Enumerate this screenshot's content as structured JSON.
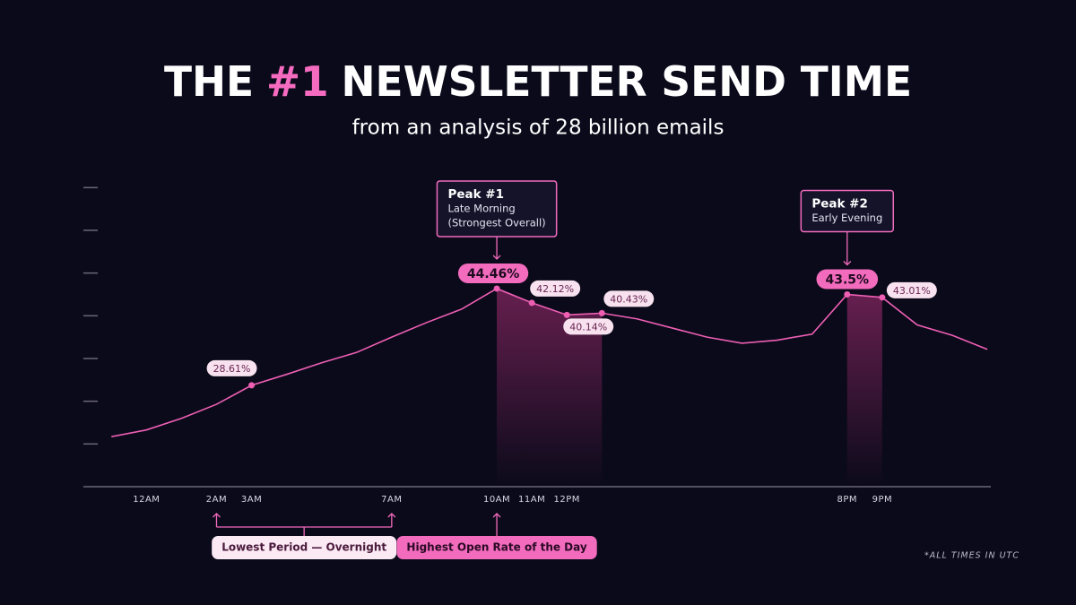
{
  "chart_data": {
    "type": "line",
    "title_parts": [
      "THE",
      "#1",
      "NEWSLETTER SEND TIME"
    ],
    "subtitle": "from an analysis of 28 billion emails",
    "x": [
      -1,
      0,
      1,
      2,
      3,
      4,
      5,
      6,
      7,
      8,
      9,
      10,
      11,
      12,
      13,
      14,
      15,
      16,
      17,
      18,
      19,
      20,
      21,
      22,
      23,
      24
    ],
    "values": [
      20.2,
      21.3,
      23.2,
      25.5,
      28.61,
      30.4,
      32.3,
      34.0,
      36.5,
      38.9,
      41.1,
      44.46,
      42.12,
      40.14,
      40.43,
      39.5,
      38.0,
      36.5,
      35.5,
      36.0,
      37.0,
      43.5,
      43.01,
      38.5,
      36.8,
      34.5
    ],
    "value_labels": [
      null,
      null,
      null,
      null,
      "28.61%",
      null,
      null,
      null,
      null,
      null,
      null,
      "44.46%",
      "42.12%",
      "40.14%",
      "40.43%",
      null,
      null,
      null,
      null,
      null,
      null,
      "43.5%",
      "43.01%",
      null,
      null,
      null
    ],
    "color": "#ee5fb4",
    "xlim": [
      -1.8,
      24.1
    ],
    "xticks": [
      {
        "value": 0,
        "label": "12AM"
      },
      {
        "value": 2,
        "label": "2AM"
      },
      {
        "value": 3,
        "label": "3AM"
      },
      {
        "value": 7,
        "label": "7AM"
      },
      {
        "value": 10,
        "label": "10AM"
      },
      {
        "value": 11,
        "label": "11AM"
      },
      {
        "value": 12,
        "label": "12PM"
      },
      {
        "value": 20,
        "label": "8PM"
      },
      {
        "value": 21,
        "label": "9PM"
      }
    ],
    "ylim": [
      12,
      62
    ],
    "yticks": [
      19,
      26,
      33,
      40,
      47,
      54,
      61
    ],
    "highlight_ranges": [
      [
        10,
        13
      ],
      [
        20,
        21
      ]
    ],
    "callouts": [
      {
        "lines": [
          "Peak #1",
          "Late Morning",
          "(Strongest Overall)"
        ],
        "x": 10
      },
      {
        "lines": [
          "Peak #2",
          "Early Evening"
        ],
        "x": 20
      }
    ],
    "annotations": [
      {
        "text": "Lowest Period — Overnight",
        "x": [
          2,
          7
        ]
      },
      {
        "text": "Highest Open Rate of the Day",
        "x": 10
      }
    ],
    "footnote": "*ALL TIMES IN UTC"
  }
}
